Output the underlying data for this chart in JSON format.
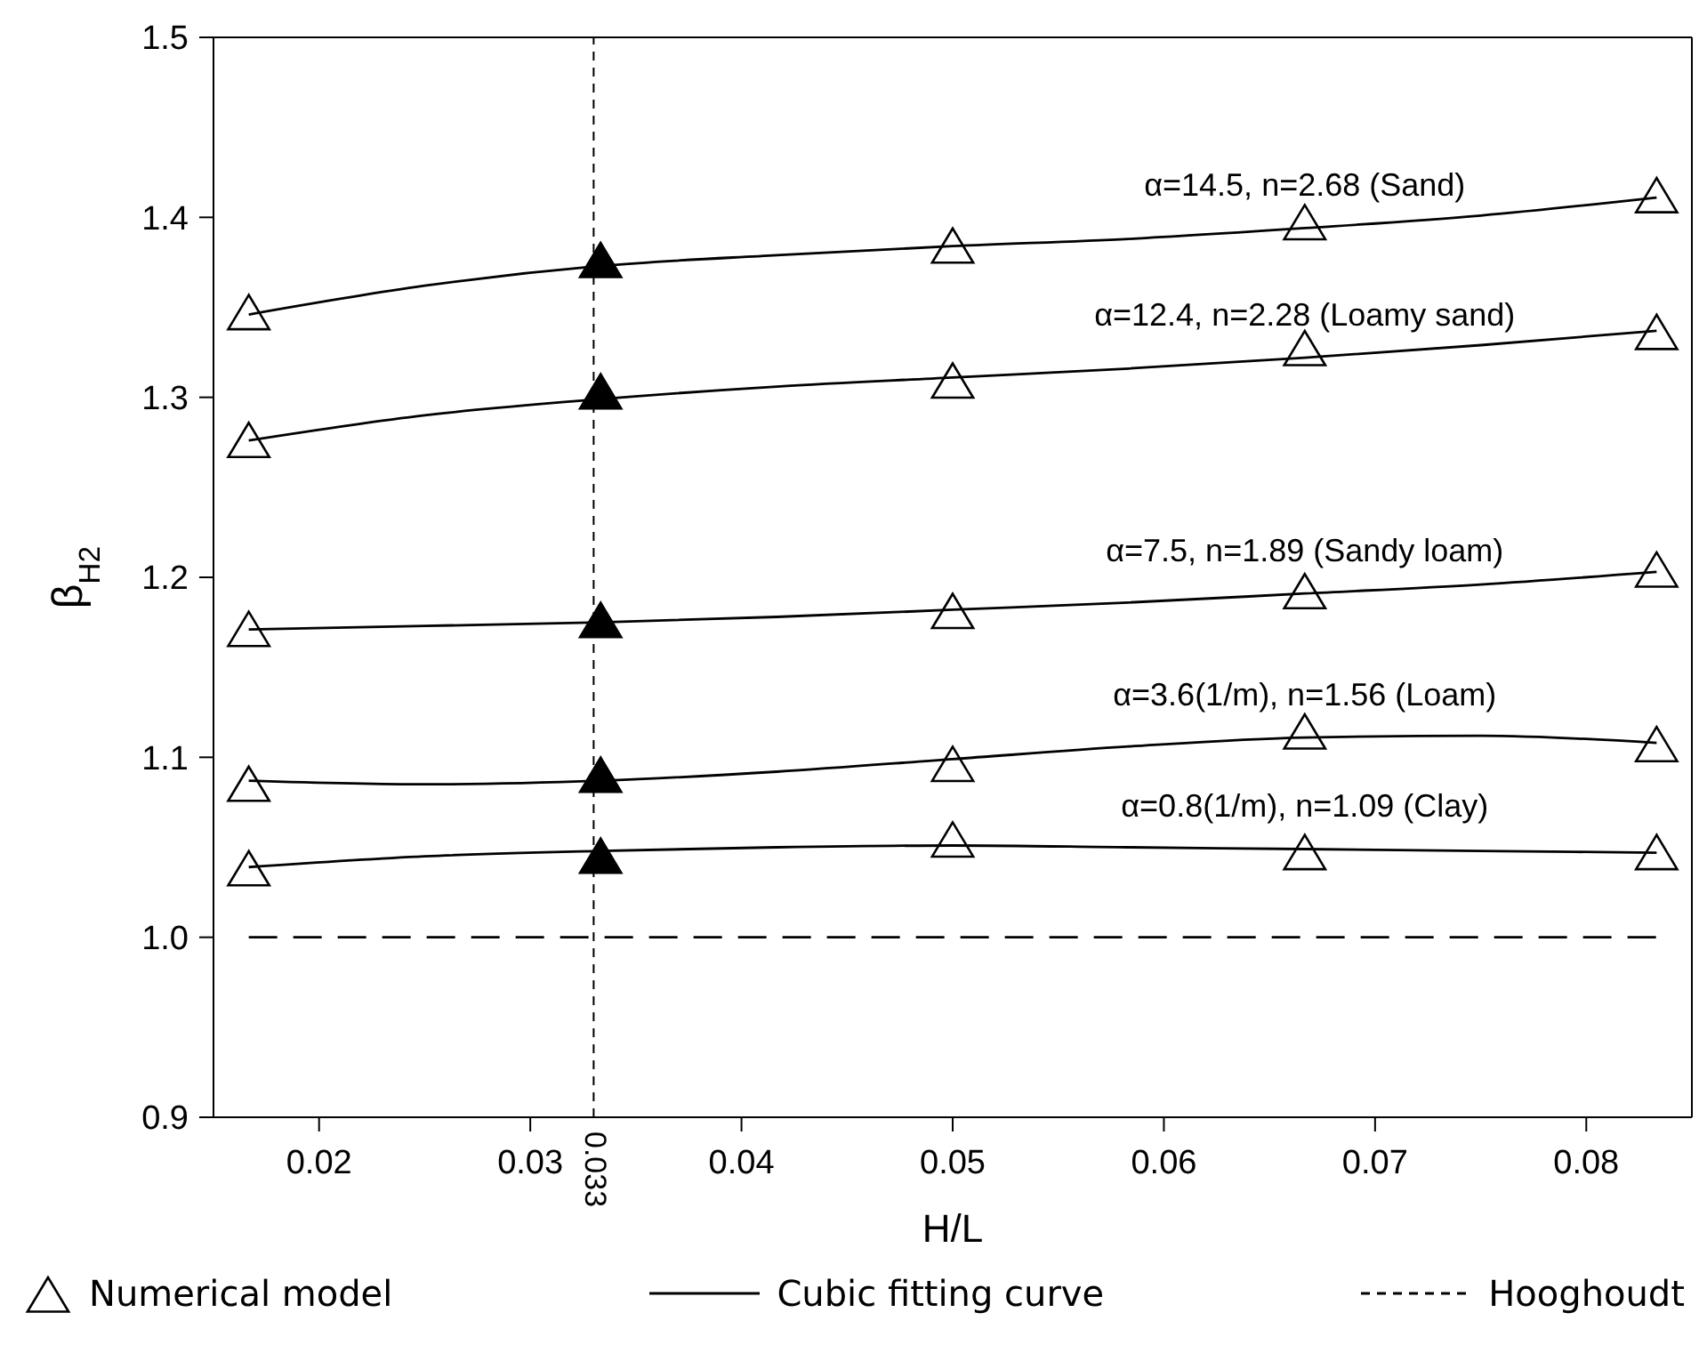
{
  "chart_data": {
    "type": "line",
    "xlabel": "H/L",
    "ylabel": "β$_{H2}$",
    "xlim": [
      0.015,
      0.085
    ],
    "xticks": [
      0.02,
      0.03,
      0.04,
      0.05,
      0.06,
      0.07,
      0.08
    ],
    "ylim": [
      0.9,
      1.5
    ],
    "yticks": [
      0.9,
      {
        "value": 1.0,
        "label": "1.0"
      },
      1.1,
      1.2,
      1.3,
      1.4,
      1.5
    ],
    "grid": false,
    "legend": "bottom",
    "series": [
      {
        "name": "Numerical model",
        "type": "scatter",
        "marker": "triangle",
        "color": "#000000",
        "x": [
          0.01667,
          0.03333,
          0.05,
          0.06667,
          0.08333,
          0.01667,
          0.03333,
          0.05,
          0.06667,
          0.08333,
          0.01667,
          0.03333,
          0.05,
          0.06667,
          0.08333,
          0.01667,
          0.03333,
          0.05,
          0.06667,
          0.08333,
          0.01667,
          0.03333,
          0.05,
          0.06667,
          0.08333
        ],
        "values": [
          1.346,
          1.375,
          1.383,
          1.396,
          1.411,
          1.275,
          1.302,
          1.308,
          1.326,
          1.335,
          1.17,
          1.175,
          1.18,
          1.191,
          1.203,
          1.084,
          1.089,
          1.095,
          1.113,
          1.106,
          1.037,
          1.044,
          1.053,
          1.046,
          1.046
        ],
        "colors": [
          "#ffffff",
          "#000000",
          "#ffffff",
          "#ffffff",
          "#ffffff",
          "#ffffff",
          "#000000",
          "#ffffff",
          "#ffffff",
          "#ffffff",
          "#ffffff",
          "#000000",
          "#ffffff",
          "#ffffff",
          "#ffffff",
          "#ffffff",
          "#000000",
          "#ffffff",
          "#ffffff",
          "#ffffff",
          "#ffffff",
          "#000000",
          "#ffffff",
          "#ffffff",
          "#ffffff"
        ]
      },
      {
        "name": "Cubic fitting curve",
        "marker": "none",
        "line_style": "solid",
        "color": "#000000",
        "x": [
          0.01667,
          0.025,
          0.03333,
          0.04167,
          0.05,
          0.05833,
          0.06667,
          0.075,
          0.08333
        ],
        "values": [
          1.346,
          1.362,
          1.373,
          1.379,
          1.384,
          1.388,
          1.394,
          1.401,
          1.411
        ]
      },
      {
        "marker": "none",
        "line_style": "solid",
        "color": "#000000",
        "x": [
          0.01667,
          0.025,
          0.03333,
          0.04167,
          0.05,
          0.05833,
          0.06667,
          0.075,
          0.08333
        ],
        "values": [
          1.276,
          1.29,
          1.299,
          1.306,
          1.311,
          1.316,
          1.322,
          1.329,
          1.337
        ]
      },
      {
        "marker": "none",
        "line_style": "solid",
        "color": "#000000",
        "x": [
          0.01667,
          0.025,
          0.03333,
          0.04167,
          0.05,
          0.05833,
          0.06667,
          0.075,
          0.08333
        ],
        "values": [
          1.171,
          1.173,
          1.175,
          1.178,
          1.182,
          1.186,
          1.191,
          1.196,
          1.203
        ]
      },
      {
        "marker": "none",
        "line_style": "solid",
        "color": "#000000",
        "x": [
          0.01667,
          0.025,
          0.03333,
          0.04167,
          0.05,
          0.05833,
          0.06667,
          0.075,
          0.08333
        ],
        "values": [
          1.087,
          1.085,
          1.087,
          1.092,
          1.099,
          1.106,
          1.111,
          1.112,
          1.108
        ]
      },
      {
        "marker": "none",
        "line_style": "solid",
        "color": "#000000",
        "x": [
          0.01667,
          0.025,
          0.03333,
          0.04167,
          0.05,
          0.05833,
          0.06667,
          0.075,
          0.08333
        ],
        "values": [
          1.039,
          1.045,
          1.048,
          1.05,
          1.051,
          1.05,
          1.049,
          1.048,
          1.047
        ]
      },
      {
        "name": "Hooghoudt",
        "marker": "none",
        "line_style": "dashed",
        "color": "#000000",
        "x": [
          0.01667,
          0.08333
        ],
        "values": [
          1.0,
          1.0
        ]
      }
    ],
    "ref_lines": [
      {
        "axis": "x",
        "value": 0.033,
        "label": "0.033",
        "line_style": "dashed",
        "color": "#000000"
      }
    ],
    "annotations": [
      "α=14.5, n=2.68 (Sand)",
      "α=12.4, n=2.28 (Loamy sand)",
      "α=7.5, n=1.89 (Sandy loam)",
      "α=3.6(1/m), n=1.56 (Loam)",
      "α=0.8(1/m), n=1.09 (Clay)"
    ]
  }
}
